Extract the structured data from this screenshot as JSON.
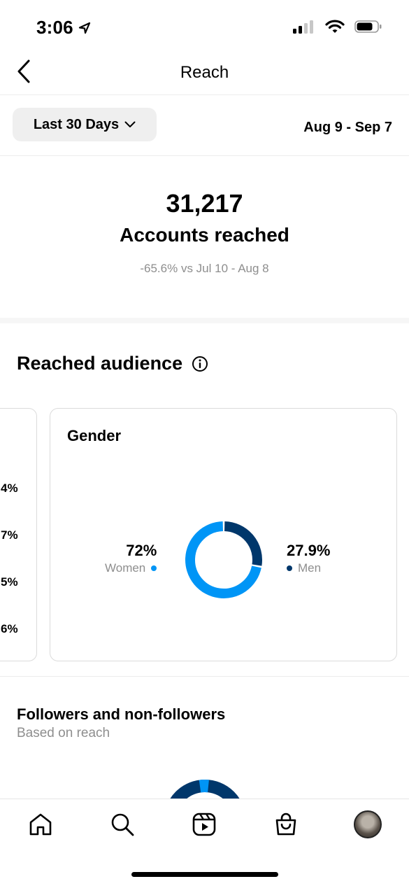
{
  "status_bar": {
    "time": "3:06",
    "location_icon": "location-arrow-icon",
    "signal_icon": "cellular-signal-icon",
    "wifi_icon": "wifi-icon",
    "battery_icon": "battery-icon"
  },
  "nav": {
    "back_icon": "chevron-left-icon",
    "title": "Reach"
  },
  "filter": {
    "range_label": "Last 30 Days",
    "range_icon": "chevron-down-icon",
    "date_range": "Aug 9 - Sep 7"
  },
  "summary": {
    "number": "31,217",
    "label": "Accounts reached",
    "comparison": "-65.6% vs Jul 10 - Aug 8"
  },
  "audience": {
    "title": "Reached audience",
    "info_icon": "info-icon",
    "left_card_values": [
      "4%",
      "7%",
      "5%",
      "6%"
    ],
    "gender_card": {
      "title": "Gender",
      "women": {
        "value": "72%",
        "label": "Women",
        "fraction": 0.72,
        "color": "#0095f6"
      },
      "men": {
        "value": "27.9%",
        "label": "Men",
        "fraction": 0.279,
        "color": "#00376b"
      }
    }
  },
  "followers": {
    "title": "Followers and non-followers",
    "subtitle": "Based on reach"
  },
  "tab_bar": {
    "items": [
      "home-icon",
      "search-icon",
      "reels-icon",
      "shop-icon",
      "profile-avatar"
    ]
  },
  "colors": {
    "accent_light": "#0095f6",
    "accent_dark": "#00376b",
    "muted_text": "#8e8e8e"
  }
}
